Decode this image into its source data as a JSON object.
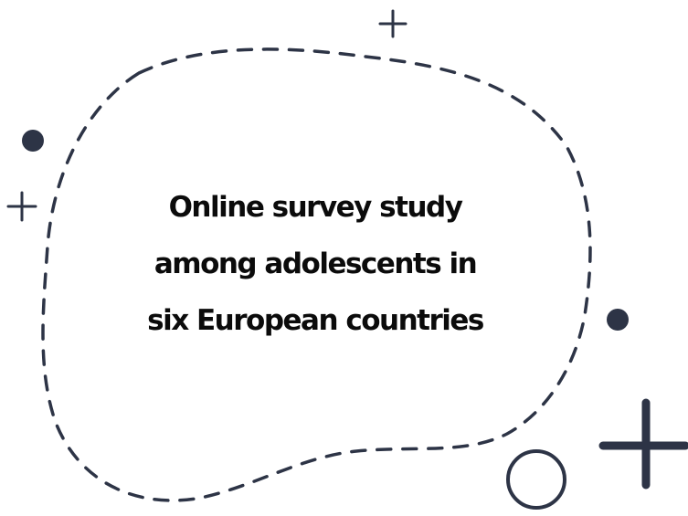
{
  "title_lines": [
    "Online survey study",
    "among adolescents in",
    "six European countries"
  ],
  "colors": {
    "outline": "#2d3446",
    "text": "#0b0b0b",
    "background": "#ffffff"
  },
  "icons": [
    "dashed-blob-outline",
    "plus-icon",
    "dot-icon",
    "circle-outline-icon"
  ]
}
